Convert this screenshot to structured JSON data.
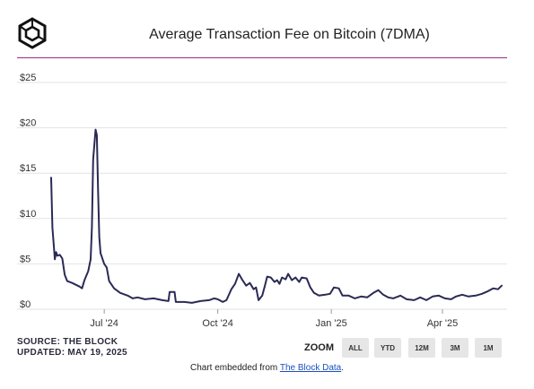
{
  "header": {
    "title": "Average Transaction Fee on Bitcoin (7DMA)"
  },
  "footer": {
    "source": "SOURCE: THE BLOCK",
    "updated": "UPDATED: MAY 19, 2025",
    "zoom_label": "ZOOM",
    "zoom_buttons": [
      "ALL",
      "YTD",
      "12M",
      "3M",
      "1M"
    ],
    "embed_prefix": "Chart embedded from ",
    "embed_link": "The Block Data",
    "embed_suffix": "."
  },
  "colors": {
    "line": "#2b2a55",
    "accent_rule": "#9c2a86",
    "grid": "#e2e2e2"
  },
  "chart_data": {
    "type": "line",
    "title": "Average Transaction Fee on Bitcoin (7DMA)",
    "xlabel": "",
    "ylabel": "",
    "ylim": [
      0,
      25
    ],
    "yticks": [
      0,
      5,
      10,
      15,
      20,
      25
    ],
    "ytick_labels": [
      "$0",
      "$5",
      "$10",
      "$15",
      "$20",
      "$25"
    ],
    "xlim": [
      "2024-05-19",
      "2025-05-19"
    ],
    "xticks": [
      "2024-07-01",
      "2024-10-01",
      "2025-01-01",
      "2025-04-01"
    ],
    "xtick_labels": [
      "Jul '24",
      "Oct '24",
      "Jan '25",
      "Apr '25"
    ],
    "grid": true,
    "series": [
      {
        "values": [
          [
            "2024-05-19",
            14.5
          ],
          [
            "2024-05-20",
            9.0
          ],
          [
            "2024-05-21",
            7.2
          ],
          [
            "2024-05-22",
            5.5
          ],
          [
            "2024-05-23",
            6.3
          ],
          [
            "2024-05-24",
            5.9
          ],
          [
            "2024-05-26",
            6.0
          ],
          [
            "2024-05-28",
            5.6
          ],
          [
            "2024-05-30",
            3.8
          ],
          [
            "2024-06-01",
            3.1
          ],
          [
            "2024-06-05",
            2.9
          ],
          [
            "2024-06-08",
            2.7
          ],
          [
            "2024-06-11",
            2.5
          ],
          [
            "2024-06-13",
            2.3
          ],
          [
            "2024-06-15",
            3.2
          ],
          [
            "2024-06-18",
            4.2
          ],
          [
            "2024-06-20",
            5.5
          ],
          [
            "2024-06-21",
            9.0
          ],
          [
            "2024-06-22",
            16.5
          ],
          [
            "2024-06-24",
            19.8
          ],
          [
            "2024-06-25",
            19.2
          ],
          [
            "2024-06-26",
            13.0
          ],
          [
            "2024-06-27",
            8.0
          ],
          [
            "2024-06-28",
            6.2
          ],
          [
            "2024-07-01",
            5.0
          ],
          [
            "2024-07-03",
            4.6
          ],
          [
            "2024-07-05",
            3.1
          ],
          [
            "2024-07-09",
            2.3
          ],
          [
            "2024-07-14",
            1.8
          ],
          [
            "2024-07-20",
            1.5
          ],
          [
            "2024-07-24",
            1.2
          ],
          [
            "2024-07-28",
            1.3
          ],
          [
            "2024-08-03",
            1.1
          ],
          [
            "2024-08-10",
            1.2
          ],
          [
            "2024-08-17",
            1.0
          ],
          [
            "2024-08-22",
            0.9
          ],
          [
            "2024-08-23",
            1.9
          ],
          [
            "2024-08-27",
            1.9
          ],
          [
            "2024-08-28",
            0.8
          ],
          [
            "2024-09-04",
            0.8
          ],
          [
            "2024-09-10",
            0.7
          ],
          [
            "2024-09-17",
            0.9
          ],
          [
            "2024-09-24",
            1.0
          ],
          [
            "2024-09-28",
            1.2
          ],
          [
            "2024-10-01",
            1.1
          ],
          [
            "2024-10-05",
            0.8
          ],
          [
            "2024-10-08",
            1.0
          ],
          [
            "2024-10-12",
            2.2
          ],
          [
            "2024-10-15",
            2.8
          ],
          [
            "2024-10-18",
            3.9
          ],
          [
            "2024-10-21",
            3.2
          ],
          [
            "2024-10-24",
            2.6
          ],
          [
            "2024-10-27",
            2.9
          ],
          [
            "2024-10-30",
            2.2
          ],
          [
            "2024-11-01",
            2.4
          ],
          [
            "2024-11-03",
            1.0
          ],
          [
            "2024-11-06",
            1.5
          ],
          [
            "2024-11-08",
            2.5
          ],
          [
            "2024-11-10",
            3.6
          ],
          [
            "2024-11-13",
            3.5
          ],
          [
            "2024-11-16",
            3.0
          ],
          [
            "2024-11-18",
            3.2
          ],
          [
            "2024-11-20",
            2.8
          ],
          [
            "2024-11-22",
            3.5
          ],
          [
            "2024-11-25",
            3.3
          ],
          [
            "2024-11-27",
            3.9
          ],
          [
            "2024-11-30",
            3.2
          ],
          [
            "2024-12-03",
            3.5
          ],
          [
            "2024-12-06",
            3.0
          ],
          [
            "2024-12-08",
            3.5
          ],
          [
            "2024-12-12",
            3.4
          ],
          [
            "2024-12-15",
            2.4
          ],
          [
            "2024-12-18",
            1.8
          ],
          [
            "2024-12-22",
            1.5
          ],
          [
            "2024-12-27",
            1.6
          ],
          [
            "2024-12-31",
            1.7
          ],
          [
            "2025-01-03",
            2.4
          ],
          [
            "2025-01-07",
            2.3
          ],
          [
            "2025-01-10",
            1.5
          ],
          [
            "2025-01-15",
            1.5
          ],
          [
            "2025-01-20",
            1.2
          ],
          [
            "2025-01-25",
            1.4
          ],
          [
            "2025-01-30",
            1.3
          ],
          [
            "2025-02-04",
            1.8
          ],
          [
            "2025-02-08",
            2.1
          ],
          [
            "2025-02-12",
            1.6
          ],
          [
            "2025-02-16",
            1.3
          ],
          [
            "2025-02-20",
            1.2
          ],
          [
            "2025-02-26",
            1.5
          ],
          [
            "2025-03-03",
            1.1
          ],
          [
            "2025-03-09",
            1.0
          ],
          [
            "2025-03-14",
            1.3
          ],
          [
            "2025-03-19",
            1.0
          ],
          [
            "2025-03-24",
            1.4
          ],
          [
            "2025-03-29",
            1.5
          ],
          [
            "2025-04-03",
            1.2
          ],
          [
            "2025-04-08",
            1.1
          ],
          [
            "2025-04-12",
            1.4
          ],
          [
            "2025-04-17",
            1.6
          ],
          [
            "2025-04-22",
            1.4
          ],
          [
            "2025-04-28",
            1.5
          ],
          [
            "2025-05-03",
            1.7
          ],
          [
            "2025-05-08",
            2.0
          ],
          [
            "2025-05-12",
            2.3
          ],
          [
            "2025-05-16",
            2.2
          ],
          [
            "2025-05-19",
            2.6
          ]
        ]
      }
    ]
  }
}
